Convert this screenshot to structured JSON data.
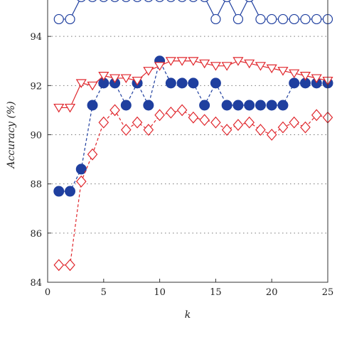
{
  "chart_data": {
    "type": "line",
    "xlabel": "k",
    "ylabel": "Accuracy (%)",
    "xlim": [
      0,
      25
    ],
    "ylim": [
      84,
      96
    ],
    "xticks": [
      0,
      5,
      10,
      15,
      20,
      25
    ],
    "yticks": [
      84,
      86,
      88,
      90,
      92,
      94
    ],
    "grid": "horizontal-dotted",
    "x": [
      1,
      2,
      3,
      4,
      5,
      6,
      7,
      8,
      9,
      10,
      11,
      12,
      13,
      14,
      15,
      16,
      17,
      18,
      19,
      20,
      21,
      22,
      23,
      24,
      25
    ],
    "series": [
      {
        "color": "#1f3f9f",
        "marker": "open-circle",
        "line": "solid",
        "values": [
          94.7,
          94.7,
          95.6,
          95.6,
          95.6,
          95.6,
          95.6,
          95.6,
          95.6,
          95.6,
          95.6,
          95.6,
          95.6,
          95.6,
          94.7,
          95.6,
          94.7,
          95.6,
          94.7,
          94.7,
          94.7,
          94.7,
          94.7,
          94.7,
          94.7
        ]
      },
      {
        "color": "#1f3f9f",
        "marker": "filled-circle",
        "line": "dashed",
        "values": [
          87.7,
          87.7,
          88.6,
          91.2,
          92.1,
          92.1,
          91.2,
          92.1,
          91.2,
          93.0,
          92.1,
          92.1,
          92.1,
          91.2,
          92.1,
          91.2,
          91.2,
          91.2,
          91.2,
          91.2,
          91.2,
          92.1,
          92.1,
          92.1,
          92.1
        ]
      },
      {
        "color": "#e0262c",
        "marker": "open-triangle-down",
        "line": "solid",
        "values": [
          91.1,
          91.1,
          92.1,
          92.0,
          92.4,
          92.3,
          92.3,
          92.2,
          92.6,
          92.8,
          93.0,
          93.0,
          93.0,
          92.9,
          92.8,
          92.8,
          93.0,
          92.9,
          92.8,
          92.7,
          92.6,
          92.5,
          92.4,
          92.3,
          92.2
        ]
      },
      {
        "color": "#e0262c",
        "marker": "open-diamond",
        "line": "dashed",
        "values": [
          84.7,
          84.7,
          88.1,
          89.2,
          90.5,
          91.0,
          90.2,
          90.5,
          90.2,
          90.8,
          90.9,
          91.0,
          90.7,
          90.6,
          90.5,
          90.2,
          90.4,
          90.5,
          90.2,
          90.0,
          90.3,
          90.5,
          90.3,
          90.8,
          90.7
        ]
      }
    ]
  }
}
